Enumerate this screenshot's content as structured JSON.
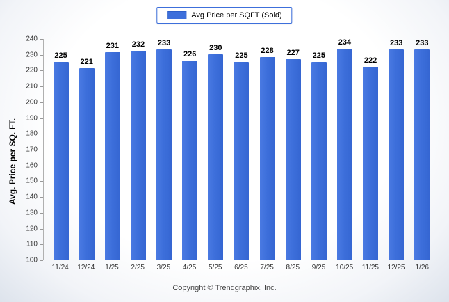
{
  "legend": {
    "label": "Avg Price per SQFT (Sold)"
  },
  "footer": {
    "copyright": "Copyright © Trendgraphix, Inc."
  },
  "chart_data": {
    "type": "bar",
    "title": "Avg Price per SQFT (Sold)",
    "categories": [
      "11/24",
      "12/24",
      "1/25",
      "2/25",
      "3/25",
      "4/25",
      "5/25",
      "6/25",
      "7/25",
      "8/25",
      "9/25",
      "10/25",
      "11/25",
      "12/25",
      "1/26"
    ],
    "values": [
      225,
      221,
      231,
      232,
      233,
      226,
      230,
      225,
      228,
      227,
      225,
      234,
      222,
      233,
      233
    ],
    "xlabel": "",
    "ylabel": "Avg. Price per SQ. FT.",
    "ylim": [
      100,
      240
    ],
    "ytick_step": 10,
    "bar_color": "#3d6fdb",
    "grid": false,
    "legend_position": "top",
    "value_labels": true
  }
}
